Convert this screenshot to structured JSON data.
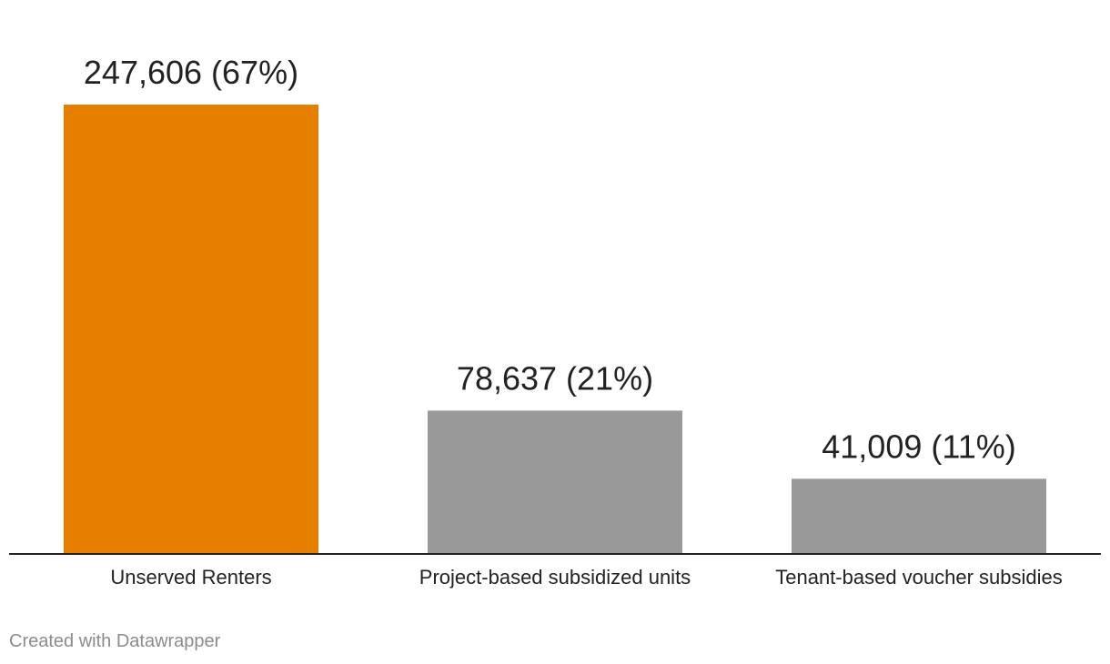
{
  "chart_data": {
    "type": "bar",
    "categories": [
      "Unserved Renters",
      "Project-based subsidized units",
      "Tenant-based voucher subsidies"
    ],
    "values": [
      247606,
      78637,
      41009
    ],
    "data_labels": [
      "247,606 (67%)",
      "78,637 (21%)",
      "41,009 (11%)"
    ],
    "colors": [
      "#e67e00",
      "#999999",
      "#999999"
    ],
    "title": "",
    "xlabel": "",
    "ylabel": "",
    "ylim": [
      0,
      247606
    ],
    "grid": false,
    "baseline_color": "#222222"
  },
  "footer": {
    "credit": "Created with Datawrapper"
  }
}
